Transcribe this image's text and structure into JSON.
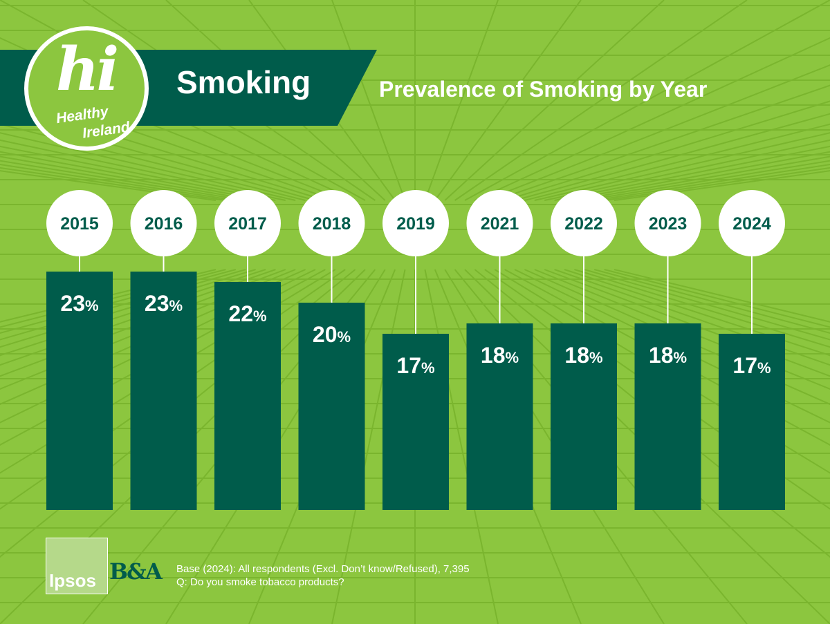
{
  "header": {
    "logo_mark": "hi",
    "logo_line1": "Healthy",
    "logo_line2": "Ireland",
    "section_title": "Smoking"
  },
  "colors": {
    "background": "#8cc63f",
    "grid": "#7ab52e",
    "banner": "#005c4b",
    "bar": "#005c4b",
    "label_circle": "#ffffff",
    "year_text": "#005c4b"
  },
  "chart_data": {
    "type": "bar",
    "title": "Prevalence of Smoking by Year",
    "categories": [
      "2015",
      "2016",
      "2017",
      "2018",
      "2019",
      "2021",
      "2022",
      "2023",
      "2024"
    ],
    "values": [
      23,
      23,
      22,
      20,
      17,
      18,
      18,
      18,
      17
    ],
    "value_suffix": "%",
    "xlabel": "",
    "ylabel": "",
    "grid": false,
    "legend": "none"
  },
  "footer": {
    "logo_ipsos": "Ipsos",
    "logo_ba": "B&A",
    "base_note": "Base (2024): All respondents (Excl. Don’t know/Refused), 7,395",
    "question_note": "Q: Do you smoke tobacco products?"
  }
}
